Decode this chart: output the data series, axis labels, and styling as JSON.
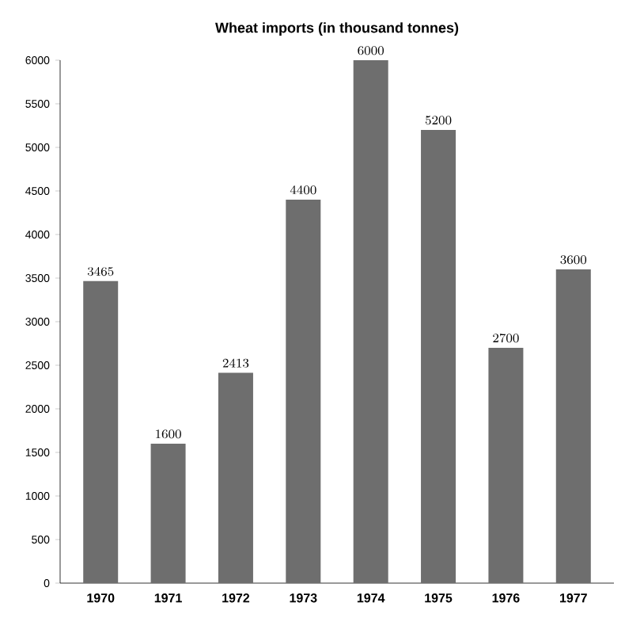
{
  "chart_data": {
    "type": "bar",
    "title": "Wheat imports (in thousand tonnes)",
    "categories": [
      "1970",
      "1971",
      "1972",
      "1973",
      "1974",
      "1975",
      "1976",
      "1977"
    ],
    "values": [
      3465,
      1600,
      2413,
      4400,
      6000,
      5200,
      2700,
      3600
    ],
    "color": "#6e6e6e",
    "data_labels": true,
    "ylim": [
      0,
      6000
    ],
    "yticks": [
      0,
      500,
      1000,
      1500,
      2000,
      2500,
      3000,
      3500,
      4000,
      4500,
      5000,
      5500,
      6000
    ]
  }
}
